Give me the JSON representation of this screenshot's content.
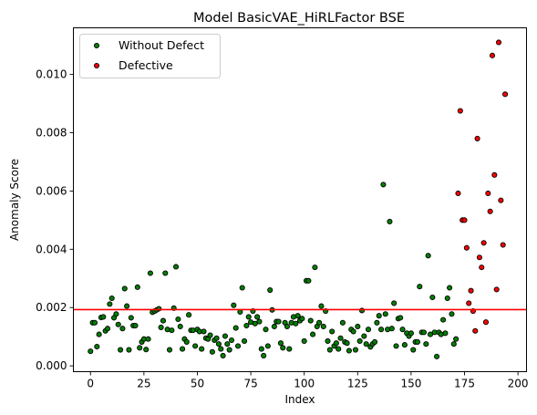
{
  "chart_data": {
    "type": "scatter",
    "title": "Model BasicVAE_HiRLFactor BSE",
    "xlabel": "Index",
    "ylabel": "Anomaly Score",
    "xlim": [
      -8,
      204
    ],
    "ylim": [
      -0.0002,
      0.0116
    ],
    "xticks": [
      0,
      25,
      50,
      75,
      100,
      125,
      150,
      175,
      200
    ],
    "yticks": [
      0.0,
      0.002,
      0.004,
      0.006,
      0.008,
      0.01
    ],
    "ytick_labels": [
      "0.000",
      "0.002",
      "0.004",
      "0.006",
      "0.008",
      "0.010"
    ],
    "grid": false,
    "legend": "top-left",
    "threshold": {
      "value": 0.00193,
      "color": "#ff0000"
    },
    "series": [
      {
        "name": "Without Defect",
        "color": "#008000",
        "edge": "#000000",
        "points": [
          [
            0,
            0.0005
          ],
          [
            1,
            0.00148
          ],
          [
            2,
            0.00148
          ],
          [
            3,
            0.00066
          ],
          [
            4,
            0.00108
          ],
          [
            5,
            0.00166
          ],
          [
            6,
            0.00168
          ],
          [
            7,
            0.0012
          ],
          [
            8,
            0.00128
          ],
          [
            9,
            0.00212
          ],
          [
            10,
            0.00232
          ],
          [
            11,
            0.00165
          ],
          [
            12,
            0.00178
          ],
          [
            13,
            0.00142
          ],
          [
            14,
            0.00055
          ],
          [
            15,
            0.00128
          ],
          [
            16,
            0.00265
          ],
          [
            17,
            0.00205
          ],
          [
            18,
            0.00055
          ],
          [
            19,
            0.00165
          ],
          [
            20,
            0.00138
          ],
          [
            21,
            0.00138
          ],
          [
            22,
            0.0027
          ],
          [
            23,
            0.00062
          ],
          [
            24,
            0.00082
          ],
          [
            25,
            0.00092
          ],
          [
            26,
            0.00056
          ],
          [
            27,
            0.00092
          ],
          [
            28,
            0.00318
          ],
          [
            29,
            0.00184
          ],
          [
            30,
            0.00188
          ],
          [
            31,
            0.00192
          ],
          [
            32,
            0.00196
          ],
          [
            33,
            0.00132
          ],
          [
            34,
            0.00155
          ],
          [
            35,
            0.00318
          ],
          [
            36,
            0.00125
          ],
          [
            37,
            0.00055
          ],
          [
            38,
            0.00122
          ],
          [
            39,
            0.00198
          ],
          [
            40,
            0.0034
          ],
          [
            41,
            0.0016
          ],
          [
            42,
            0.00135
          ],
          [
            43,
            0.00058
          ],
          [
            44,
            0.00092
          ],
          [
            45,
            0.00082
          ],
          [
            46,
            0.00175
          ],
          [
            47,
            0.00122
          ],
          [
            48,
            0.00122
          ],
          [
            49,
            0.00068
          ],
          [
            50,
            0.00125
          ],
          [
            51,
            0.00118
          ],
          [
            52,
            0.00058
          ],
          [
            53,
            0.00118
          ],
          [
            54,
            0.00095
          ],
          [
            55,
            0.00092
          ],
          [
            56,
            0.00105
          ],
          [
            57,
            0.00048
          ],
          [
            58,
            0.00088
          ],
          [
            59,
            0.00095
          ],
          [
            60,
            0.00075
          ],
          [
            61,
            0.00058
          ],
          [
            62,
            0.00035
          ],
          [
            63,
            0.00102
          ],
          [
            64,
            0.00075
          ],
          [
            65,
            0.00055
          ],
          [
            66,
            0.00088
          ],
          [
            67,
            0.00208
          ],
          [
            68,
            0.0013
          ],
          [
            69,
            0.00068
          ],
          [
            70,
            0.00185
          ],
          [
            71,
            0.00268
          ],
          [
            72,
            0.00085
          ],
          [
            73,
            0.00138
          ],
          [
            74,
            0.00168
          ],
          [
            75,
            0.0015
          ],
          [
            76,
            0.00188
          ],
          [
            77,
            0.00145
          ],
          [
            78,
            0.00168
          ],
          [
            79,
            0.00152
          ],
          [
            80,
            0.00058
          ],
          [
            81,
            0.00035
          ],
          [
            82,
            0.00125
          ],
          [
            83,
            0.00068
          ],
          [
            84,
            0.0026
          ],
          [
            85,
            0.00192
          ],
          [
            86,
            0.00135
          ],
          [
            87,
            0.00152
          ],
          [
            88,
            0.00152
          ],
          [
            89,
            0.00078
          ],
          [
            90,
            0.00062
          ],
          [
            91,
            0.00148
          ],
          [
            92,
            0.00135
          ],
          [
            93,
            0.00058
          ],
          [
            94,
            0.00148
          ],
          [
            95,
            0.00168
          ],
          [
            96,
            0.00145
          ],
          [
            97,
            0.00172
          ],
          [
            98,
            0.00155
          ],
          [
            99,
            0.00162
          ],
          [
            100,
            0.00085
          ],
          [
            101,
            0.00292
          ],
          [
            102,
            0.00292
          ],
          [
            103,
            0.00155
          ],
          [
            104,
            0.00108
          ],
          [
            105,
            0.00338
          ],
          [
            106,
            0.00135
          ],
          [
            107,
            0.00148
          ],
          [
            108,
            0.00205
          ],
          [
            109,
            0.00135
          ],
          [
            110,
            0.00188
          ],
          [
            111,
            0.00085
          ],
          [
            112,
            0.00055
          ],
          [
            113,
            0.00118
          ],
          [
            114,
            0.00068
          ],
          [
            115,
            0.00078
          ],
          [
            116,
            0.00058
          ],
          [
            117,
            0.00095
          ],
          [
            118,
            0.00148
          ],
          [
            119,
            0.00082
          ],
          [
            120,
            0.00078
          ],
          [
            121,
            0.00052
          ],
          [
            122,
            0.00125
          ],
          [
            123,
            0.00118
          ],
          [
            124,
            0.00055
          ],
          [
            125,
            0.00135
          ],
          [
            126,
            0.00085
          ],
          [
            127,
            0.0019
          ],
          [
            128,
            0.00102
          ],
          [
            129,
            0.00075
          ],
          [
            130,
            0.00125
          ],
          [
            131,
            0.00065
          ],
          [
            132,
            0.00075
          ],
          [
            133,
            0.00082
          ],
          [
            134,
            0.00148
          ],
          [
            135,
            0.00172
          ],
          [
            136,
            0.00125
          ],
          [
            137,
            0.00622
          ],
          [
            138,
            0.00178
          ],
          [
            139,
            0.00125
          ],
          [
            140,
            0.00495
          ],
          [
            141,
            0.00128
          ],
          [
            142,
            0.00215
          ],
          [
            143,
            0.00068
          ],
          [
            144,
            0.00162
          ],
          [
            145,
            0.00165
          ],
          [
            146,
            0.00125
          ],
          [
            147,
            0.00072
          ],
          [
            148,
            0.00112
          ],
          [
            149,
            0.00102
          ],
          [
            150,
            0.00112
          ],
          [
            151,
            0.00055
          ],
          [
            152,
            0.00082
          ],
          [
            153,
            0.00082
          ],
          [
            154,
            0.00272
          ],
          [
            155,
            0.00115
          ],
          [
            156,
            0.00115
          ],
          [
            157,
            0.00075
          ],
          [
            158,
            0.00378
          ],
          [
            159,
            0.00108
          ],
          [
            160,
            0.00235
          ],
          [
            161,
            0.00115
          ],
          [
            162,
            0.00032
          ],
          [
            163,
            0.00115
          ],
          [
            164,
            0.00108
          ],
          [
            165,
            0.00158
          ],
          [
            166,
            0.00112
          ],
          [
            167,
            0.00232
          ],
          [
            168,
            0.00268
          ],
          [
            169,
            0.00178
          ],
          [
            170,
            0.00075
          ],
          [
            171,
            0.00092
          ]
        ]
      },
      {
        "name": "Defective",
        "color": "#ff0000",
        "edge": "#000000",
        "points": [
          [
            172,
            0.00592
          ],
          [
            173,
            0.00875
          ],
          [
            174,
            0.005
          ],
          [
            175,
            0.005
          ],
          [
            176,
            0.00405
          ],
          [
            177,
            0.00215
          ],
          [
            178,
            0.00258
          ],
          [
            179,
            0.00188
          ],
          [
            180,
            0.0012
          ],
          [
            181,
            0.0078
          ],
          [
            182,
            0.00372
          ],
          [
            183,
            0.00338
          ],
          [
            184,
            0.00422
          ],
          [
            185,
            0.0015
          ],
          [
            186,
            0.00592
          ],
          [
            187,
            0.0053
          ],
          [
            188,
            0.01065
          ],
          [
            189,
            0.00655
          ],
          [
            190,
            0.00262
          ],
          [
            191,
            0.0111
          ],
          [
            192,
            0.00568
          ],
          [
            193,
            0.00415
          ],
          [
            194,
            0.00932
          ]
        ]
      }
    ]
  }
}
